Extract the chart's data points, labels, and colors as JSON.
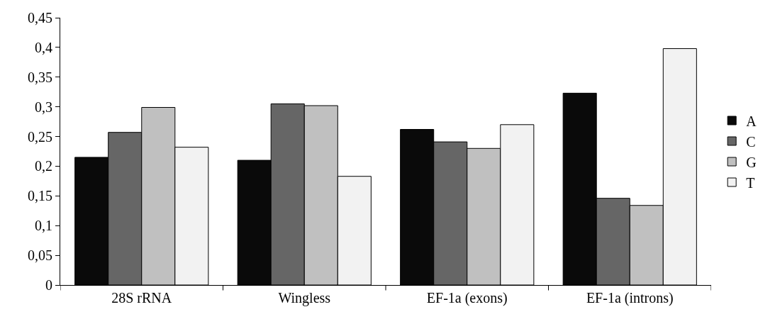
{
  "chart_data": {
    "type": "bar",
    "categories": [
      "28S rRNA",
      "Wingless",
      "EF-1a (exons)",
      "EF-1a (introns)"
    ],
    "series": [
      {
        "name": "A",
        "color": "#0a0a0a",
        "values": [
          0.215,
          0.21,
          0.262,
          0.323
        ]
      },
      {
        "name": "C",
        "color": "#666666",
        "values": [
          0.257,
          0.305,
          0.241,
          0.146
        ]
      },
      {
        "name": "G",
        "color": "#c0c0c0",
        "values": [
          0.299,
          0.302,
          0.23,
          0.134
        ]
      },
      {
        "name": "T",
        "color": "#f2f2f2",
        "values": [
          0.232,
          0.183,
          0.27,
          0.398
        ]
      }
    ],
    "ylim": [
      0,
      0.45
    ],
    "yticks": [
      0,
      {
        "value": 0.05,
        "label": "0,05"
      },
      {
        "value": 0.1,
        "label": "0,1"
      },
      {
        "value": 0.15,
        "label": "0,15"
      },
      {
        "value": 0.2,
        "label": "0,2"
      },
      {
        "value": 0.25,
        "label": "0,25"
      },
      {
        "value": 0.3,
        "label": "0,3"
      },
      {
        "value": 0.35,
        "label": "0,35"
      },
      {
        "value": 0.4,
        "label": "0,4"
      },
      {
        "value": 0.45,
        "label": "0,45"
      }
    ],
    "grid": false,
    "legend": "right"
  }
}
